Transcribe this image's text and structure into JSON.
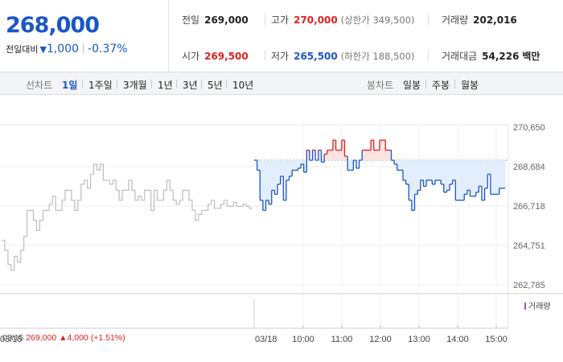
{
  "summary": {
    "current_price": "268,000",
    "change_label": "전일대비",
    "change_arrow": "▼",
    "change_value": "1,000",
    "change_percent": "-0.37%",
    "prev_close": {
      "label": "전일",
      "value": "269,000"
    },
    "high": {
      "label": "고가",
      "value": "270,000",
      "limit_note": "(상한가 349,500)"
    },
    "volume": {
      "label": "거래량",
      "value": "202,016"
    },
    "open": {
      "label": "시가",
      "value": "269,500"
    },
    "low": {
      "label": "저가",
      "value": "265,500",
      "limit_note": "(하한가 188,500)"
    },
    "amount": {
      "label": "거래대금",
      "value": "54,226",
      "unit": "백만"
    }
  },
  "tabs": {
    "line_chart_label": "선차트",
    "line_periods": [
      "1일",
      "1주일",
      "3개월",
      "1년",
      "3년",
      "5년",
      "10년"
    ],
    "selected_period": "1일",
    "candle_chart_label": "봉차트",
    "candle_periods": [
      "일봉",
      "주봉",
      "월봉"
    ]
  },
  "colors": {
    "up": "#e0201f",
    "down": "#1a56c8",
    "prev_day_line": "#bdbdbd",
    "down_fill": "#e3eefc",
    "up_fill": "#fbe3e3",
    "volume_marker": "#9b59b6"
  },
  "prev_info": {
    "date": "03/15",
    "price": "269,000",
    "arrow": "▲",
    "change": "4,000",
    "percent": "(+1.51%)"
  },
  "volume_legend": "거래량",
  "chart_data": {
    "type": "line",
    "title": "",
    "ylim": [
      262785,
      270650
    ],
    "y_ticks": [
      "270,650",
      "268,684",
      "266,718",
      "264,751",
      "262,785"
    ],
    "y_tick_values": [
      270650,
      268684,
      266718,
      264751,
      262785
    ],
    "x_tick_labels": [
      "03/15",
      "03/18",
      "10:00",
      "11:00",
      "12:00",
      "13:00",
      "14:00",
      "15:00"
    ],
    "reference_price": 269000,
    "grid": true,
    "series": [
      {
        "name": "03/15",
        "values": [
          265000,
          264500,
          263800,
          263500,
          264200,
          263900,
          264500,
          265200,
          266500,
          266500,
          266000,
          265500,
          266000,
          266500,
          266500,
          266800,
          267200,
          266500,
          266500,
          267000,
          267500,
          267500,
          267000,
          266500,
          267000,
          267800,
          268000,
          267600,
          268300,
          268800,
          268500,
          268800,
          268000,
          268000,
          267800,
          268000,
          267500,
          267000,
          267500,
          267500,
          268000,
          267500,
          267000,
          267200,
          267000,
          267500,
          267500,
          266500,
          267500,
          267000,
          267000,
          267500,
          268000,
          267500,
          267000,
          266800,
          267000,
          267500,
          267500,
          267000,
          266500,
          266000,
          266300,
          266500,
          266500,
          266800,
          267000,
          266600,
          266600,
          266800,
          267000,
          266700,
          266700,
          266900,
          266700,
          266700,
          266800,
          266700,
          266600
        ]
      },
      {
        "name": "03/18",
        "values": [
          269000,
          268500,
          267000,
          266500,
          267000,
          266800,
          267500,
          267300,
          267800,
          268200,
          267000,
          268000,
          268200,
          268500,
          268500,
          268600,
          268800,
          268400,
          269500,
          269000,
          269500,
          269000,
          269500,
          268900,
          269300,
          269500,
          269500,
          270000,
          269500,
          269500,
          270000,
          269200,
          268500,
          268500,
          269000,
          268600,
          269000,
          269500,
          269500,
          269500,
          270000,
          269500,
          269500,
          270000,
          270000,
          269500,
          269500,
          269000,
          268800,
          268500,
          268500,
          268000,
          267800,
          267000,
          266500,
          267300,
          267500,
          268000,
          267700,
          268000,
          268000,
          267800,
          268000,
          268000,
          267800,
          267400,
          267500,
          267800,
          268000,
          267000,
          267000,
          267000,
          267300,
          267500,
          267200,
          267200,
          267400,
          267700,
          267000,
          267600,
          268300,
          267300,
          267300,
          267300,
          267600,
          267600
        ]
      }
    ]
  }
}
